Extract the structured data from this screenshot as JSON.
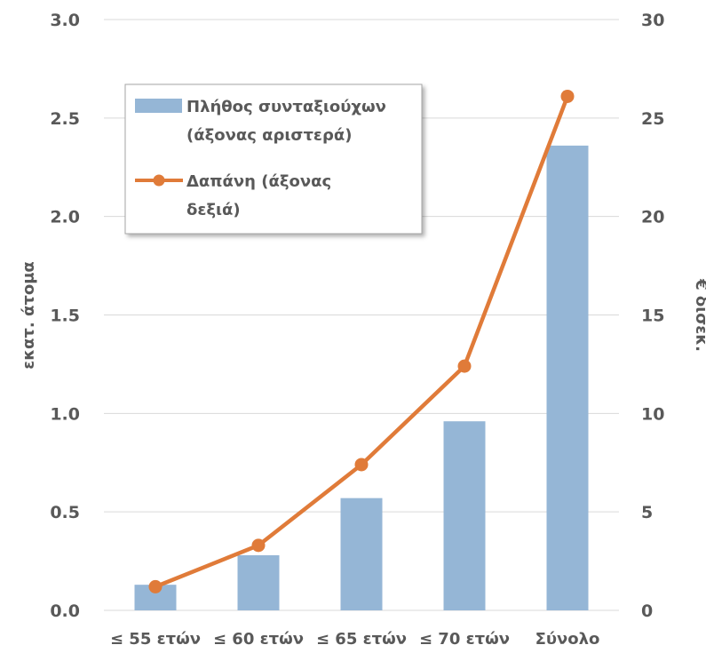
{
  "chart_data": {
    "type": "bar",
    "categories": [
      "≤ 55 ετών",
      "≤ 60 ετών",
      "≤ 65 ετών",
      "≤ 70 ετών",
      "Σύνολο"
    ],
    "series": [
      {
        "name": "Πλήθος συνταξιούχων (άξονας αριστερά)",
        "type": "bar",
        "axis": "left",
        "color": "#95b6d6",
        "values": [
          0.13,
          0.28,
          0.57,
          0.96,
          2.36
        ]
      },
      {
        "name": "Δαπάνη (άξονας δεξιά)",
        "type": "line",
        "axis": "right",
        "color": "#e07b39",
        "values": [
          1.2,
          3.3,
          7.4,
          12.4,
          26.1
        ]
      }
    ],
    "y_left": {
      "label": "εκατ. άτομα",
      "range": [
        0,
        3
      ],
      "ticks": [
        "0.0",
        "0.5",
        "1.0",
        "1.5",
        "2.0",
        "2.5",
        "3.0"
      ]
    },
    "y_right": {
      "label": "€ δισεκ.",
      "range": [
        0,
        30
      ],
      "ticks": [
        "0",
        "5",
        "10",
        "15",
        "20",
        "25",
        "30"
      ]
    },
    "grid": true,
    "legend": {
      "position": "top-left",
      "bar_label_lines": [
        "Πλήθος συνταξιούχων",
        "(άξονας αριστερά)"
      ],
      "line_label_lines": [
        "Δαπάνη (άξονας",
        "δεξιά)"
      ]
    }
  }
}
